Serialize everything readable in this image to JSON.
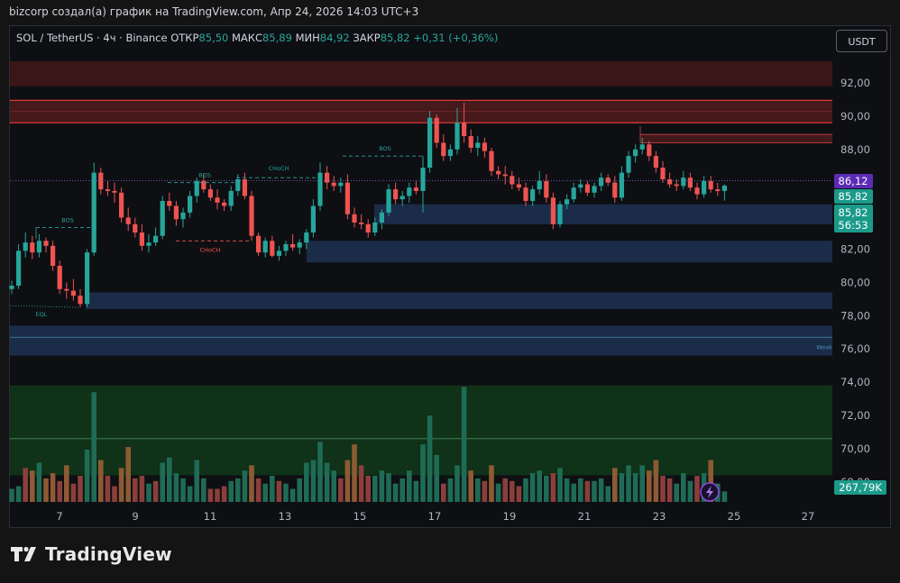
{
  "caption": "bizcorp создал(а) график на TradingView.com, Апр 24, 2026 14:03 UTC+3",
  "legend": {
    "symbol": "SOL / TetherUS · 4ч · Binance",
    "open_label": "ОТКР",
    "open": "85,50",
    "high_label": "МАКС",
    "high": "85,89",
    "low_label": "МИН",
    "low": "84,92",
    "close_label": "ЗАКР",
    "close": "85,82",
    "change": "+0,31 (+0,36%)"
  },
  "currency_button": "USDT",
  "brand": "TradingView",
  "colors": {
    "up": "#26a69a",
    "down": "#ef5350",
    "vol_up": "#1f6b55",
    "vol_down": "#8a3f3b",
    "vol_orange": "#8d5a34",
    "price_badge": "#5b2bb5",
    "demand_zone": "#1d3050",
    "supply_zone": "#4a1a1a",
    "volume_zone": "#10361a"
  },
  "chart_data": {
    "type": "candlestick",
    "yticks": [
      "92,00",
      "90,00",
      "88,00",
      "86,00",
      "84,00",
      "82,00",
      "80,00",
      "78,00",
      "76,00",
      "74,00",
      "72,00",
      "70,00",
      "68,00"
    ],
    "xticks": [
      "7",
      "9",
      "11",
      "13",
      "15",
      "17",
      "19",
      "21",
      "23",
      "25",
      "27"
    ],
    "last_price_badge": "86,12",
    "close_badge": "85,82",
    "countdown_badge": "85,82",
    "countdown_time": "56:53",
    "volume_badge": "267,79K",
    "annotations": [
      "BOS",
      "BOS",
      "BOS",
      "CHoCH",
      "CHoCH",
      "EQL",
      "Weak"
    ],
    "zones": [
      {
        "type": "supply",
        "low": 91.8,
        "high": 93.3
      },
      {
        "type": "supply",
        "low": 89.6,
        "high": 91.0
      },
      {
        "type": "demand",
        "low": 83.5,
        "high": 84.7
      },
      {
        "type": "demand",
        "low": 81.2,
        "high": 82.5
      },
      {
        "type": "demand",
        "low": 78.4,
        "high": 79.4
      },
      {
        "type": "demand",
        "low": 75.6,
        "high": 77.4
      },
      {
        "type": "volume",
        "low": 68.4,
        "high": 73.8
      }
    ],
    "candles": [
      [
        79.6,
        80.1,
        79.3,
        79.8
      ],
      [
        79.8,
        82.3,
        79.6,
        81.9
      ],
      [
        81.9,
        83.0,
        81.5,
        82.4
      ],
      [
        82.4,
        82.8,
        81.4,
        81.8
      ],
      [
        81.8,
        82.9,
        81.5,
        82.5
      ],
      [
        82.5,
        82.7,
        81.8,
        82.2
      ],
      [
        82.2,
        82.5,
        80.7,
        81.0
      ],
      [
        81.0,
        81.3,
        79.3,
        79.6
      ],
      [
        79.6,
        80.0,
        79.0,
        79.5
      ],
      [
        79.5,
        80.2,
        78.9,
        79.2
      ],
      [
        79.2,
        79.6,
        78.5,
        78.7
      ],
      [
        78.7,
        82.0,
        78.5,
        81.8
      ],
      [
        81.8,
        87.2,
        81.6,
        86.6
      ],
      [
        86.6,
        86.9,
        85.3,
        85.6
      ],
      [
        85.6,
        86.1,
        85.2,
        85.5
      ],
      [
        85.5,
        86.0,
        84.8,
        85.4
      ],
      [
        85.4,
        85.7,
        83.6,
        83.9
      ],
      [
        83.9,
        84.5,
        83.1,
        83.5
      ],
      [
        83.5,
        83.9,
        82.7,
        83.0
      ],
      [
        83.0,
        83.5,
        81.9,
        82.2
      ],
      [
        82.2,
        82.9,
        81.8,
        82.4
      ],
      [
        82.4,
        83.3,
        82.2,
        82.8
      ],
      [
        82.8,
        85.2,
        82.6,
        84.9
      ],
      [
        84.9,
        85.4,
        84.3,
        84.6
      ],
      [
        84.6,
        84.9,
        83.4,
        83.8
      ],
      [
        83.8,
        84.5,
        83.3,
        84.2
      ],
      [
        84.2,
        85.5,
        83.9,
        85.2
      ],
      [
        85.2,
        86.3,
        84.8,
        86.1
      ],
      [
        86.1,
        86.5,
        85.4,
        85.6
      ],
      [
        85.6,
        85.9,
        84.9,
        85.1
      ],
      [
        85.1,
        85.6,
        84.4,
        84.8
      ],
      [
        84.8,
        85.0,
        84.3,
        84.6
      ],
      [
        84.6,
        85.8,
        84.3,
        85.5
      ],
      [
        85.5,
        86.5,
        85.2,
        86.2
      ],
      [
        86.2,
        86.6,
        85.0,
        85.2
      ],
      [
        85.2,
        85.5,
        82.5,
        82.8
      ],
      [
        82.8,
        83.0,
        81.6,
        81.8
      ],
      [
        81.8,
        82.7,
        81.5,
        82.5
      ],
      [
        82.5,
        82.8,
        81.5,
        81.6
      ],
      [
        81.6,
        82.2,
        81.3,
        81.9
      ],
      [
        81.9,
        82.5,
        81.6,
        82.3
      ],
      [
        82.3,
        82.9,
        81.9,
        82.1
      ],
      [
        82.1,
        82.6,
        81.7,
        82.4
      ],
      [
        82.4,
        83.2,
        82.0,
        83.0
      ],
      [
        83.0,
        85.0,
        82.7,
        84.6
      ],
      [
        84.6,
        87.2,
        84.3,
        86.6
      ],
      [
        86.6,
        87.0,
        85.6,
        86.0
      ],
      [
        86.0,
        86.4,
        85.5,
        85.8
      ],
      [
        85.8,
        86.3,
        85.4,
        86.0
      ],
      [
        86.0,
        86.5,
        83.8,
        84.1
      ],
      [
        84.1,
        84.5,
        83.3,
        83.6
      ],
      [
        83.6,
        84.1,
        83.2,
        83.5
      ],
      [
        83.5,
        83.8,
        82.7,
        83.0
      ],
      [
        83.0,
        83.9,
        82.8,
        83.6
      ],
      [
        83.6,
        84.4,
        83.2,
        84.2
      ],
      [
        84.2,
        85.9,
        84.0,
        85.6
      ],
      [
        85.6,
        86.0,
        84.7,
        85.0
      ],
      [
        85.0,
        85.5,
        84.6,
        85.2
      ],
      [
        85.2,
        86.0,
        84.8,
        85.7
      ],
      [
        85.7,
        86.1,
        85.3,
        85.5
      ],
      [
        85.5,
        87.6,
        84.2,
        86.9
      ],
      [
        86.9,
        90.3,
        86.6,
        89.9
      ],
      [
        89.9,
        90.1,
        88.1,
        88.4
      ],
      [
        88.4,
        88.9,
        87.3,
        87.6
      ],
      [
        87.6,
        88.3,
        87.3,
        88.0
      ],
      [
        88.0,
        90.5,
        87.7,
        89.6
      ],
      [
        89.6,
        90.8,
        88.4,
        88.8
      ],
      [
        88.8,
        89.2,
        87.8,
        88.1
      ],
      [
        88.1,
        88.8,
        87.6,
        88.4
      ],
      [
        88.4,
        88.7,
        87.5,
        87.9
      ],
      [
        87.9,
        88.1,
        86.4,
        86.7
      ],
      [
        86.7,
        87.0,
        86.2,
        86.5
      ],
      [
        86.5,
        87.0,
        85.9,
        86.4
      ],
      [
        86.4,
        86.7,
        85.6,
        85.9
      ],
      [
        85.9,
        86.3,
        85.5,
        85.7
      ],
      [
        85.7,
        86.0,
        84.6,
        84.9
      ],
      [
        84.9,
        85.8,
        84.6,
        85.6
      ],
      [
        85.6,
        86.7,
        85.3,
        86.1
      ],
      [
        86.1,
        86.5,
        84.8,
        85.1
      ],
      [
        85.1,
        85.4,
        83.2,
        83.5
      ],
      [
        83.5,
        84.9,
        83.3,
        84.7
      ],
      [
        84.7,
        85.3,
        84.4,
        85.0
      ],
      [
        85.0,
        86.0,
        84.8,
        85.7
      ],
      [
        85.7,
        86.2,
        85.4,
        85.9
      ],
      [
        85.9,
        86.1,
        85.2,
        85.4
      ],
      [
        85.4,
        86.0,
        85.1,
        85.8
      ],
      [
        85.8,
        86.6,
        85.5,
        86.3
      ],
      [
        86.3,
        86.5,
        85.8,
        86.0
      ],
      [
        86.0,
        86.4,
        84.8,
        85.1
      ],
      [
        85.1,
        87.0,
        84.9,
        86.6
      ],
      [
        86.6,
        87.9,
        86.3,
        87.6
      ],
      [
        87.6,
        88.3,
        87.2,
        88.0
      ],
      [
        88.0,
        88.7,
        87.7,
        88.3
      ],
      [
        88.3,
        88.5,
        87.3,
        87.6
      ],
      [
        87.6,
        87.9,
        86.6,
        86.9
      ],
      [
        86.9,
        87.3,
        86.0,
        86.2
      ],
      [
        86.2,
        86.6,
        85.7,
        85.9
      ],
      [
        85.9,
        86.2,
        85.5,
        85.8
      ],
      [
        85.8,
        86.7,
        85.6,
        86.3
      ],
      [
        86.3,
        86.6,
        85.5,
        85.7
      ],
      [
        85.7,
        86.0,
        85.0,
        85.3
      ],
      [
        85.3,
        86.4,
        85.1,
        86.1
      ],
      [
        86.1,
        86.4,
        85.4,
        85.6
      ],
      [
        85.6,
        86.0,
        85.2,
        85.5
      ],
      [
        85.5,
        85.89,
        84.92,
        85.82
      ]
    ],
    "volumes": [
      [
        0.5,
        "up"
      ],
      [
        0.6,
        "up"
      ],
      [
        1.3,
        "down"
      ],
      [
        1.2,
        "orange"
      ],
      [
        1.5,
        "up"
      ],
      [
        0.9,
        "orange"
      ],
      [
        1.1,
        "orange"
      ],
      [
        0.8,
        "down"
      ],
      [
        1.4,
        "orange"
      ],
      [
        0.7,
        "down"
      ],
      [
        1.0,
        "down"
      ],
      [
        2.0,
        "up"
      ],
      [
        4.2,
        "up"
      ],
      [
        1.6,
        "orange"
      ],
      [
        1.0,
        "down"
      ],
      [
        0.6,
        "down"
      ],
      [
        1.3,
        "orange"
      ],
      [
        2.1,
        "orange"
      ],
      [
        0.9,
        "down"
      ],
      [
        1.0,
        "down"
      ],
      [
        0.7,
        "up"
      ],
      [
        0.8,
        "down"
      ],
      [
        1.5,
        "up"
      ],
      [
        1.7,
        "up"
      ],
      [
        1.1,
        "up"
      ],
      [
        0.9,
        "up"
      ],
      [
        0.6,
        "up"
      ],
      [
        1.6,
        "up"
      ],
      [
        0.9,
        "up"
      ],
      [
        0.5,
        "down"
      ],
      [
        0.5,
        "down"
      ],
      [
        0.6,
        "down"
      ],
      [
        0.8,
        "up"
      ],
      [
        0.9,
        "up"
      ],
      [
        1.2,
        "up"
      ],
      [
        1.4,
        "orange"
      ],
      [
        0.9,
        "down"
      ],
      [
        0.7,
        "up"
      ],
      [
        1.0,
        "up"
      ],
      [
        0.8,
        "down"
      ],
      [
        0.7,
        "up"
      ],
      [
        0.5,
        "up"
      ],
      [
        0.9,
        "up"
      ],
      [
        1.5,
        "up"
      ],
      [
        1.6,
        "up"
      ],
      [
        2.3,
        "up"
      ],
      [
        1.5,
        "up"
      ],
      [
        1.2,
        "up"
      ],
      [
        0.9,
        "down"
      ],
      [
        1.6,
        "orange"
      ],
      [
        2.2,
        "orange"
      ],
      [
        1.4,
        "down"
      ],
      [
        1.0,
        "down"
      ],
      [
        1.0,
        "up"
      ],
      [
        1.2,
        "up"
      ],
      [
        1.1,
        "up"
      ],
      [
        0.7,
        "up"
      ],
      [
        0.9,
        "up"
      ],
      [
        1.2,
        "up"
      ],
      [
        0.8,
        "up"
      ],
      [
        2.2,
        "up"
      ],
      [
        3.3,
        "up"
      ],
      [
        1.8,
        "up"
      ],
      [
        0.7,
        "down"
      ],
      [
        0.9,
        "up"
      ],
      [
        1.4,
        "up"
      ],
      [
        4.4,
        "up"
      ],
      [
        1.2,
        "orange"
      ],
      [
        0.9,
        "up"
      ],
      [
        0.8,
        "down"
      ],
      [
        1.4,
        "orange"
      ],
      [
        0.7,
        "up"
      ],
      [
        0.9,
        "down"
      ],
      [
        0.8,
        "down"
      ],
      [
        0.6,
        "down"
      ],
      [
        0.9,
        "up"
      ],
      [
        1.1,
        "up"
      ],
      [
        1.2,
        "up"
      ],
      [
        1.0,
        "up"
      ],
      [
        1.1,
        "down"
      ],
      [
        1.3,
        "up"
      ],
      [
        0.9,
        "up"
      ],
      [
        0.7,
        "up"
      ],
      [
        0.9,
        "up"
      ],
      [
        0.8,
        "down"
      ],
      [
        0.8,
        "up"
      ],
      [
        0.9,
        "up"
      ],
      [
        0.6,
        "up"
      ],
      [
        1.3,
        "orange"
      ],
      [
        1.1,
        "up"
      ],
      [
        1.4,
        "up"
      ],
      [
        1.1,
        "up"
      ],
      [
        1.4,
        "up"
      ],
      [
        1.2,
        "orange"
      ],
      [
        1.6,
        "orange"
      ],
      [
        1.0,
        "down"
      ],
      [
        0.9,
        "down"
      ],
      [
        0.7,
        "up"
      ],
      [
        1.1,
        "up"
      ],
      [
        0.8,
        "up"
      ],
      [
        1.0,
        "down"
      ],
      [
        1.1,
        "up"
      ],
      [
        1.6,
        "orange"
      ],
      [
        0.7,
        "up"
      ],
      [
        0.4,
        "up"
      ]
    ]
  }
}
